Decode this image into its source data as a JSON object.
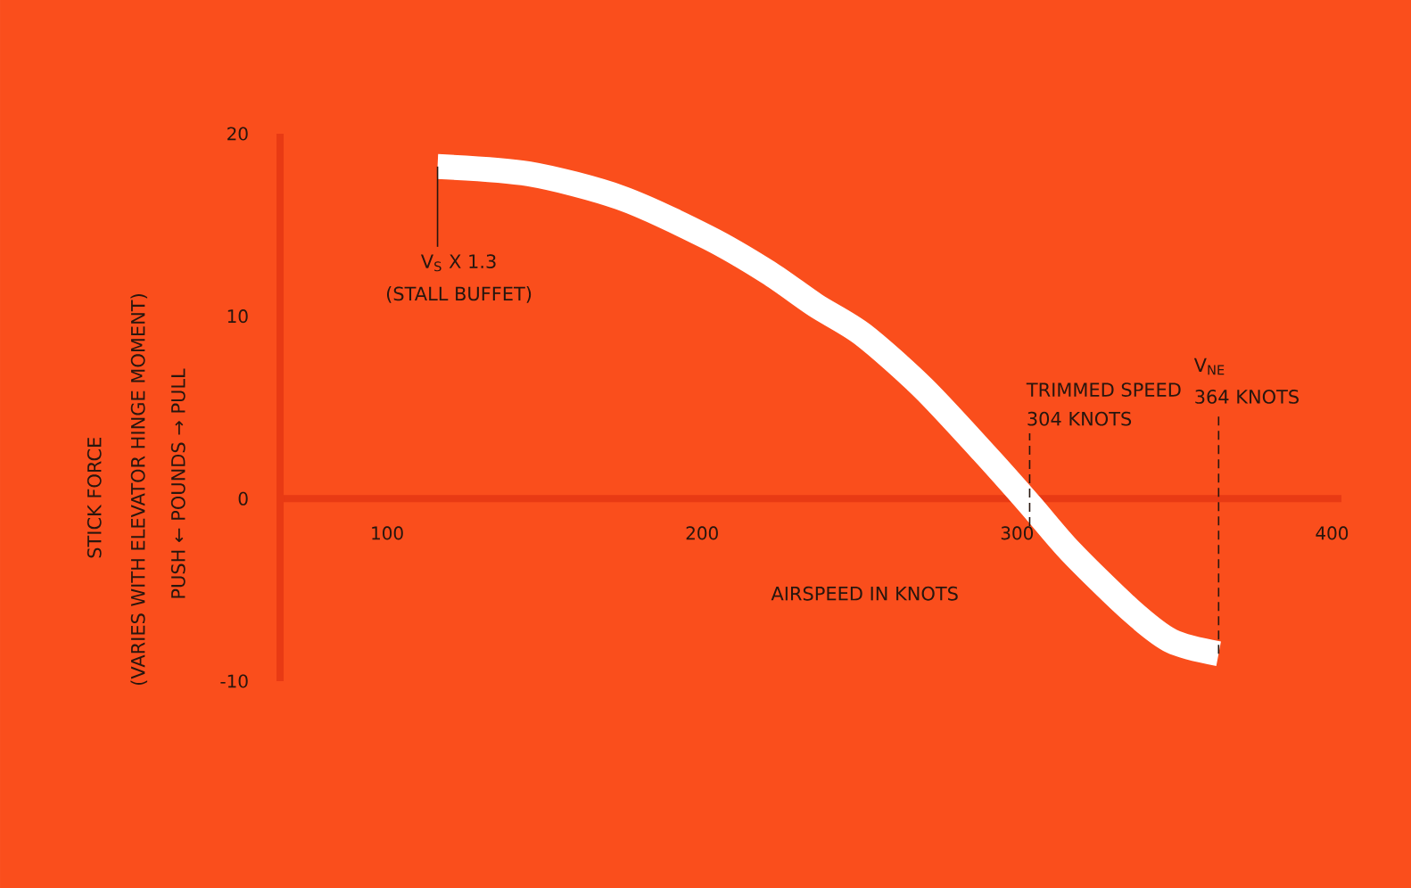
{
  "chart_data": {
    "type": "line",
    "xlabel": "AIRSPEED IN KNOTS",
    "ylabel": "PUSH ← POUNDS → PULL",
    "annotations": [
      "STICK FORCE",
      "(VARIES WITH ELEVATOR HINGE MOMENT)",
      {
        "text": "V$_{S}$ X 1.3",
        "x": 116,
        "y": 18.2
      },
      "(STALL BUFFET)",
      "TRIMMED SPEED",
      {
        "text": "304 KNOTS",
        "x": 304,
        "y": -1.5
      },
      "V$_{NE}$",
      {
        "text": "364 KNOTS",
        "x": 364,
        "y": -8.5
      }
    ],
    "x": [
      116,
      145,
      174,
      202,
      221,
      236,
      251,
      270,
      289,
      304,
      317,
      336,
      349,
      364
    ],
    "values": [
      18.2,
      17.8,
      16.5,
      14.3,
      12.4,
      10.6,
      9.0,
      6.1,
      2.6,
      -0.3,
      -2.9,
      -6.1,
      -7.8,
      -8.5
    ],
    "color": "#ffffff",
    "xlim": [
      66,
      403
    ],
    "ylim": [
      -10,
      20
    ],
    "xticks": [
      100,
      200,
      300,
      400
    ],
    "yticks": [
      -10,
      0,
      10,
      20
    ],
    "marker": "none",
    "line_style": "solid"
  }
}
